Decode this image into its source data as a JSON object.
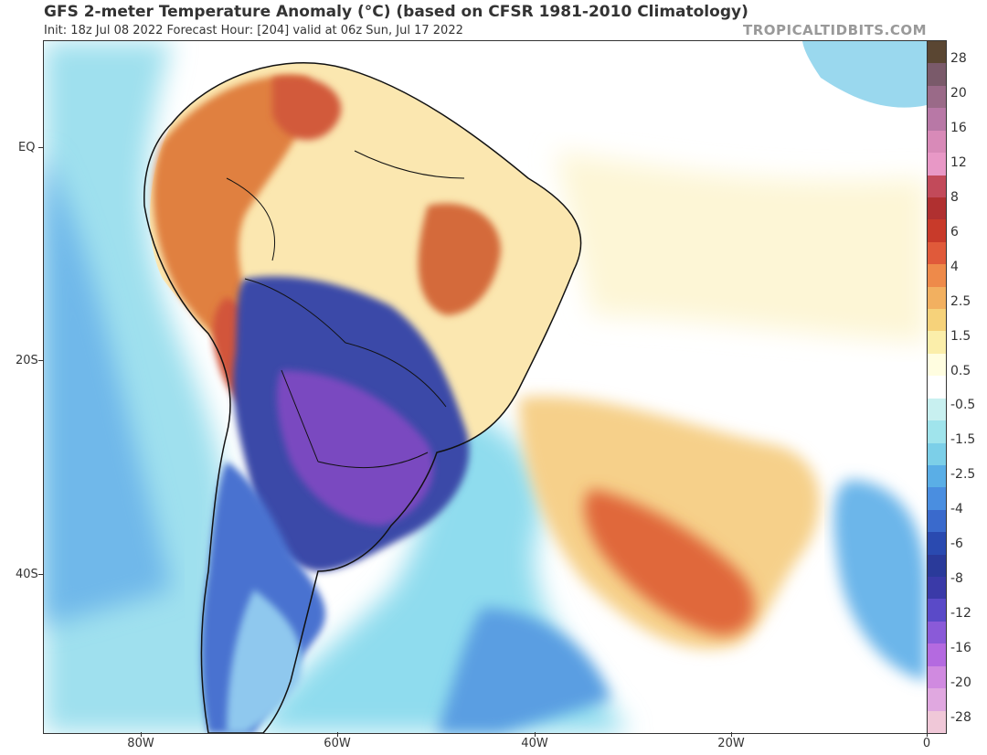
{
  "title": "GFS 2-meter Temperature Anomaly (°C) (based on CFSR 1981-2010 Climatology)",
  "subtitle": "Init: 18z Jul 08 2022   Forecast Hour: [204]   valid at 06z Sun, Jul 17 2022",
  "brand": "TROPICALTIDBITS.COM",
  "map": {
    "lat_labels": [
      "EQ",
      "20S",
      "40S"
    ],
    "lon_labels": [
      "80W",
      "60W",
      "40W",
      "20W",
      "0"
    ]
  },
  "colorbar": {
    "labels": [
      "28",
      "20",
      "16",
      "12",
      "8",
      "6",
      "4",
      "2.5",
      "1.5",
      "0.5",
      "-0.5",
      "-1.5",
      "-2.5",
      "-4",
      "-6",
      "-8",
      "-12",
      "-16",
      "-20",
      "-28"
    ],
    "colors": [
      "#5a4632",
      "#7a5a6a",
      "#9a6a88",
      "#b878a6",
      "#d88ab8",
      "#e898c6",
      "#c24a5a",
      "#b03030",
      "#c83a2a",
      "#e05a3a",
      "#ee8a4a",
      "#f2b060",
      "#f6d27a",
      "#fbeeaa",
      "#fffde0",
      "#ffffff",
      "#c8f0f0",
      "#a0e4ec",
      "#7ccfe8",
      "#5aaee6",
      "#4a8ee0",
      "#3a6acc",
      "#2a4ab0",
      "#2a3a9a",
      "#3a3aa8",
      "#5a4ac8",
      "#8a5ad8",
      "#b46ae0",
      "#d08ae0",
      "#e0a8e0",
      "#f0c8d8"
    ]
  }
}
